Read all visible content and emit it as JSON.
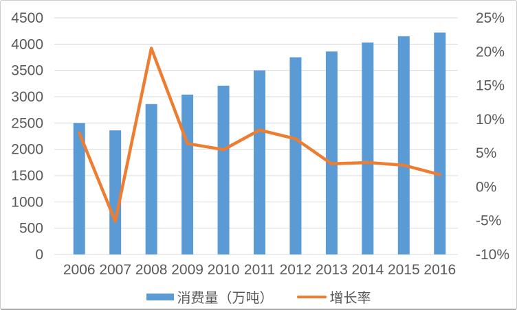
{
  "chart_data": {
    "type": "bar",
    "combo": "bar+line, dual axis",
    "categories": [
      "2006",
      "2007",
      "2008",
      "2009",
      "2010",
      "2011",
      "2012",
      "2013",
      "2014",
      "2015",
      "2016"
    ],
    "series": [
      {
        "name": "消费量（万吨）",
        "type": "bar",
        "axis": "left",
        "color": "#5B9BD5",
        "values": [
          2500,
          2360,
          2860,
          3040,
          3210,
          3500,
          3750,
          3860,
          4030,
          4150,
          4220
        ]
      },
      {
        "name": "增长率",
        "type": "line",
        "axis": "right",
        "color": "#ED7D31",
        "values": [
          8.0,
          -5.1,
          20.5,
          6.4,
          5.5,
          8.4,
          7.1,
          3.4,
          3.6,
          3.2,
          1.8
        ]
      }
    ],
    "left_axis": {
      "min": 0,
      "max": 4500,
      "step": 500,
      "ticks": [
        "0",
        "500",
        "1000",
        "1500",
        "2000",
        "2500",
        "3000",
        "3500",
        "4000",
        "4500"
      ]
    },
    "right_axis": {
      "min": -10,
      "max": 25,
      "step": 5,
      "ticks": [
        "-10%",
        "-5%",
        "0%",
        "5%",
        "10%",
        "15%",
        "20%",
        "25%"
      ]
    },
    "grid": "horizontal",
    "legend_position": "bottom"
  },
  "legend": {
    "items": [
      {
        "label": "消费量（万吨）",
        "marker": "bar"
      },
      {
        "label": "增长率",
        "marker": "line"
      }
    ]
  },
  "colors": {
    "bar": "#5B9BD5",
    "line": "#ED7D31",
    "grid": "#D9D9D9",
    "text": "#595959",
    "background": "#FFFFFF",
    "card_border": "#CACACA"
  }
}
